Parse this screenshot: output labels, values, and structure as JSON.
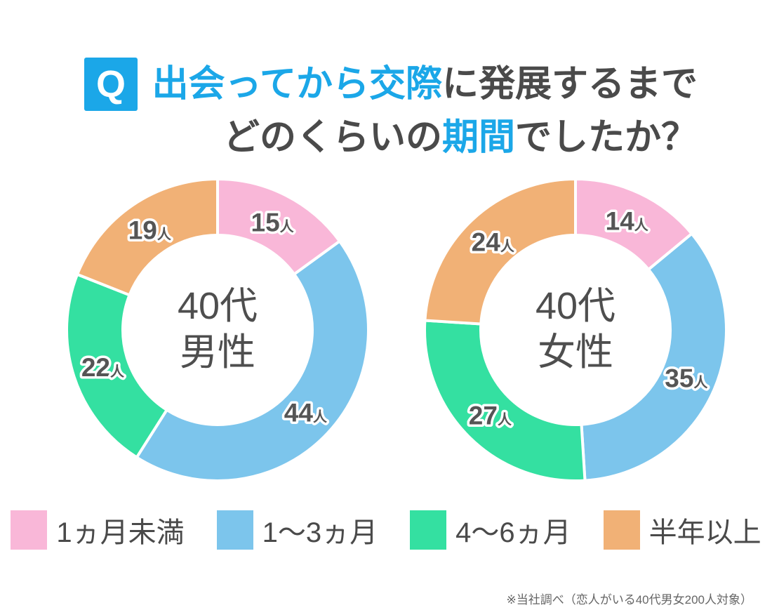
{
  "header": {
    "q_badge": "Q",
    "title_line1": [
      {
        "text": "出会ってから交際",
        "emphasis": true
      },
      {
        "text": "に発展するまで",
        "emphasis": false
      }
    ],
    "title_line2": [
      {
        "text": "どのくらいの",
        "emphasis": false
      },
      {
        "text": "期間",
        "emphasis": true
      },
      {
        "text": "でしたか？",
        "emphasis": false
      }
    ]
  },
  "chart_data": [
    {
      "type": "pie",
      "variant": "donut",
      "title": "40代男性",
      "center_label": [
        "40代",
        "男性"
      ],
      "unit": "人",
      "start_angle_deg": 0,
      "direction": "clockwise",
      "total": 100,
      "categories": [
        "1ヵ月未満",
        "1～3ヵ月",
        "4～6ヵ月",
        "半年以上"
      ],
      "values": [
        15,
        44,
        22,
        19
      ],
      "colors": [
        "#f9b7d8",
        "#7cc5ec",
        "#34e0a1",
        "#f1b176"
      ]
    },
    {
      "type": "pie",
      "variant": "donut",
      "title": "40代女性",
      "center_label": [
        "40代",
        "女性"
      ],
      "unit": "人",
      "start_angle_deg": 0,
      "direction": "clockwise",
      "total": 100,
      "categories": [
        "1ヵ月未満",
        "1～3ヵ月",
        "4～6ヵ月",
        "半年以上"
      ],
      "values": [
        14,
        35,
        27,
        24
      ],
      "colors": [
        "#f9b7d8",
        "#7cc5ec",
        "#34e0a1",
        "#f1b176"
      ]
    }
  ],
  "legend": {
    "items": [
      {
        "label": "1ヵ月未満",
        "color": "#f9b7d8"
      },
      {
        "label": "1～3ヵ月",
        "color": "#7cc5ec"
      },
      {
        "label": "4～6ヵ月",
        "color": "#34e0a1"
      },
      {
        "label": "半年以上",
        "color": "#f1b176"
      }
    ]
  },
  "footnote": "※当社調べ（恋人がいる40代男女200人対象）",
  "colors": {
    "accent_blue": "#1ba7e8",
    "text_dark": "#4a4a4a",
    "segment_label": "#555555",
    "footnote_gray": "#666666",
    "background": "#ffffff"
  }
}
